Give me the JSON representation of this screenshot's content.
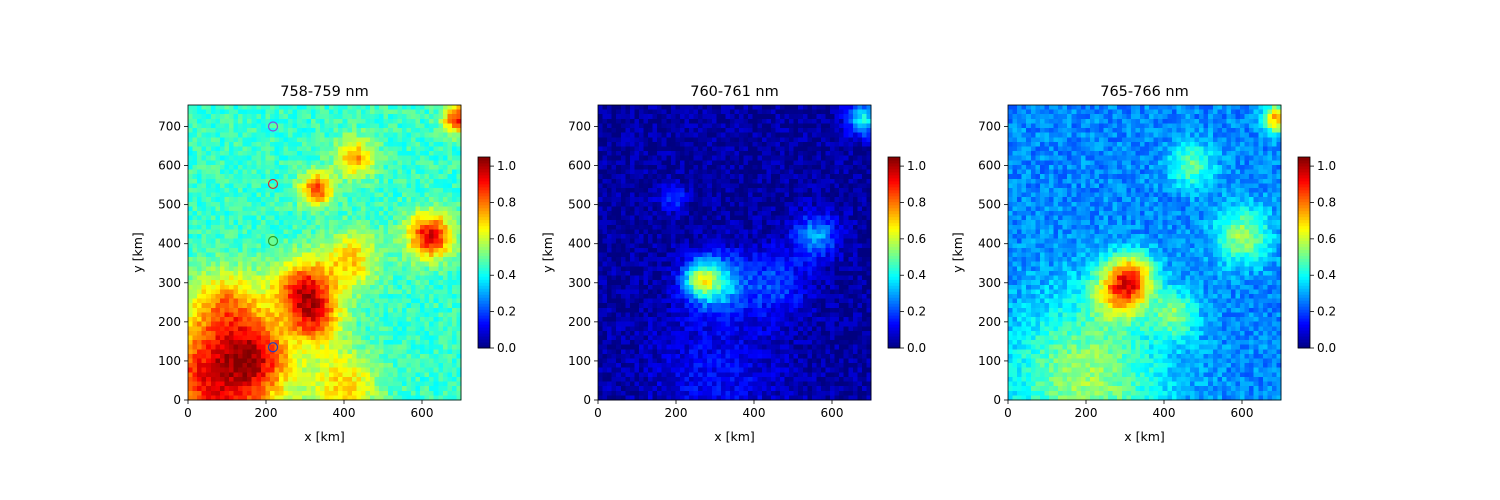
{
  "chart_data": [
    {
      "type": "heatmap",
      "title": "758-759 nm",
      "xlabel": "x [km]",
      "ylabel": "y [km]",
      "xlim": [
        0,
        700
      ],
      "ylim": [
        0,
        755
      ],
      "xticks": [
        0,
        200,
        400,
        600
      ],
      "yticks": [
        0,
        100,
        200,
        300,
        400,
        500,
        600,
        700
      ],
      "colormap": "jet",
      "background_value": 0.45,
      "colorbar": {
        "vmin": 0.0,
        "vmax": 1.05,
        "ticks": [
          "0.0",
          "0.2",
          "0.4",
          "0.6",
          "0.8",
          "1.0"
        ]
      },
      "features": [
        {
          "x": 80,
          "y": 60,
          "spread": 110,
          "value": 0.95
        },
        {
          "x": 300,
          "y": 280,
          "spread": 55,
          "value": 0.92
        },
        {
          "x": 330,
          "y": 200,
          "spread": 45,
          "value": 0.75
        },
        {
          "x": 420,
          "y": 360,
          "spread": 50,
          "value": 0.7
        },
        {
          "x": 620,
          "y": 420,
          "spread": 40,
          "value": 0.95
        },
        {
          "x": 330,
          "y": 540,
          "spread": 30,
          "value": 0.85
        },
        {
          "x": 430,
          "y": 620,
          "spread": 35,
          "value": 0.75
        },
        {
          "x": 690,
          "y": 720,
          "spread": 25,
          "value": 0.9
        },
        {
          "x": 180,
          "y": 120,
          "spread": 60,
          "value": 0.7
        },
        {
          "x": 400,
          "y": 40,
          "spread": 60,
          "value": 0.7
        },
        {
          "x": 100,
          "y": 250,
          "spread": 60,
          "value": 0.7
        }
      ],
      "markers": [
        {
          "x": 218,
          "y": 700,
          "color": "#8c4bd8"
        },
        {
          "x": 218,
          "y": 553,
          "color": "#d03030"
        },
        {
          "x": 218,
          "y": 407,
          "color": "#2aa02a"
        },
        {
          "x": 218,
          "y": 135,
          "color": "#2040c0"
        }
      ]
    },
    {
      "type": "heatmap",
      "title": "760-761 nm",
      "xlabel": "x [km]",
      "ylabel": "y [km]",
      "xlim": [
        0,
        700
      ],
      "ylim": [
        0,
        755
      ],
      "xticks": [
        0,
        200,
        400,
        600
      ],
      "yticks": [
        0,
        100,
        200,
        300,
        400,
        500,
        600,
        700
      ],
      "colormap": "jet",
      "background_value": 0.03,
      "colorbar": {
        "vmin": 0.0,
        "vmax": 1.05,
        "ticks": [
          "0.0",
          "0.2",
          "0.4",
          "0.6",
          "0.8",
          "1.0"
        ]
      },
      "features": [
        {
          "x": 300,
          "y": 300,
          "spread": 50,
          "value": 0.4
        },
        {
          "x": 260,
          "y": 310,
          "spread": 30,
          "value": 0.35
        },
        {
          "x": 560,
          "y": 420,
          "spread": 40,
          "value": 0.3
        },
        {
          "x": 680,
          "y": 720,
          "spread": 30,
          "value": 0.4
        },
        {
          "x": 190,
          "y": 520,
          "spread": 25,
          "value": 0.2
        },
        {
          "x": 450,
          "y": 300,
          "spread": 60,
          "value": 0.2
        },
        {
          "x": 300,
          "y": 60,
          "spread": 120,
          "value": 0.13
        }
      ],
      "markers": []
    },
    {
      "type": "heatmap",
      "title": "765-766 nm",
      "xlabel": "x [km]",
      "ylabel": "y [km]",
      "xlim": [
        0,
        700
      ],
      "ylim": [
        0,
        755
      ],
      "xticks": [
        0,
        200,
        400,
        600
      ],
      "yticks": [
        0,
        100,
        200,
        300,
        400,
        500,
        600,
        700
      ],
      "colormap": "jet",
      "background_value": 0.27,
      "colorbar": {
        "vmin": 0.0,
        "vmax": 1.05,
        "ticks": [
          "0.0",
          "0.2",
          "0.4",
          "0.6",
          "0.8",
          "1.0"
        ]
      },
      "features": [
        {
          "x": 290,
          "y": 280,
          "spread": 50,
          "value": 0.7
        },
        {
          "x": 320,
          "y": 320,
          "spread": 40,
          "value": 0.6
        },
        {
          "x": 200,
          "y": 60,
          "spread": 140,
          "value": 0.55
        },
        {
          "x": 600,
          "y": 420,
          "spread": 50,
          "value": 0.55
        },
        {
          "x": 690,
          "y": 720,
          "spread": 25,
          "value": 0.75
        },
        {
          "x": 430,
          "y": 220,
          "spread": 40,
          "value": 0.5
        },
        {
          "x": 470,
          "y": 600,
          "spread": 40,
          "value": 0.5
        }
      ],
      "markers": []
    }
  ]
}
